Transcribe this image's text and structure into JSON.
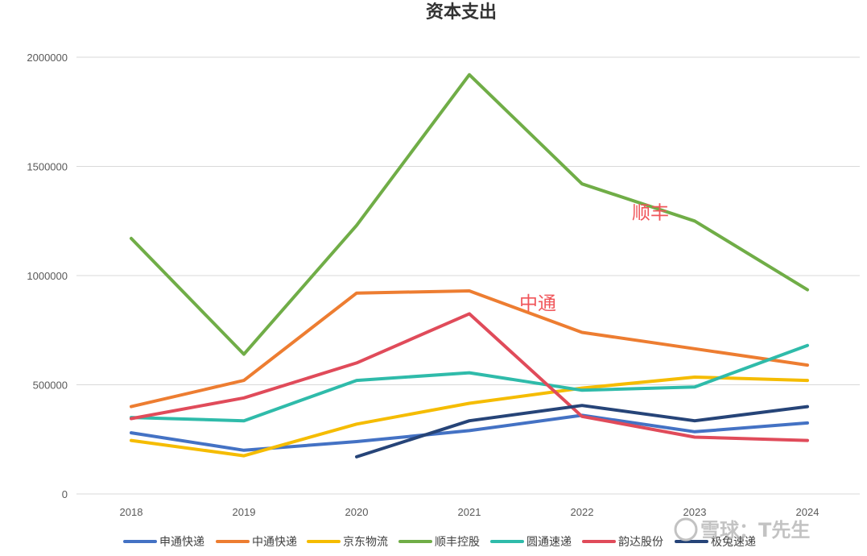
{
  "chart_data": {
    "type": "line",
    "title": "资本支出",
    "x": [
      "2018",
      "2019",
      "2020",
      "2021",
      "2022",
      "2023",
      "2024"
    ],
    "ylim": [
      0,
      2000000
    ],
    "yticks": [
      "0",
      "500000",
      "1000000",
      "1500000",
      "2000000"
    ],
    "grid": true,
    "legend_position": "bottom",
    "series": [
      {
        "name": "申通快递",
        "color": "#4472c4",
        "values": [
          280000,
          200000,
          240000,
          290000,
          360000,
          285000,
          325000
        ]
      },
      {
        "name": "中通快递",
        "color": "#ed7d31",
        "values": [
          400000,
          520000,
          920000,
          930000,
          740000,
          665000,
          590000
        ]
      },
      {
        "name": "京东物流",
        "color": "#f5bc00",
        "values": [
          245000,
          175000,
          320000,
          415000,
          485000,
          535000,
          520000
        ]
      },
      {
        "name": "顺丰控股",
        "color": "#70ad47",
        "values": [
          1170000,
          640000,
          1230000,
          1920000,
          1420000,
          1250000,
          935000
        ]
      },
      {
        "name": "圆通速递",
        "color": "#2fbbaa",
        "values": [
          350000,
          335000,
          520000,
          555000,
          475000,
          490000,
          680000
        ]
      },
      {
        "name": "韵达股份",
        "color": "#e04b5a",
        "values": [
          345000,
          440000,
          600000,
          825000,
          355000,
          260000,
          245000
        ]
      },
      {
        "name": "极兔速递",
        "color": "#264478",
        "values": [
          null,
          null,
          170000,
          335000,
          405000,
          335000,
          400000
        ]
      }
    ],
    "annotations": [
      {
        "text": "顺丰",
        "x": "2022",
        "y": 1290000
      },
      {
        "text": "中通",
        "x": "2021",
        "y": 875000
      }
    ]
  },
  "watermark": "雪球：T先生"
}
